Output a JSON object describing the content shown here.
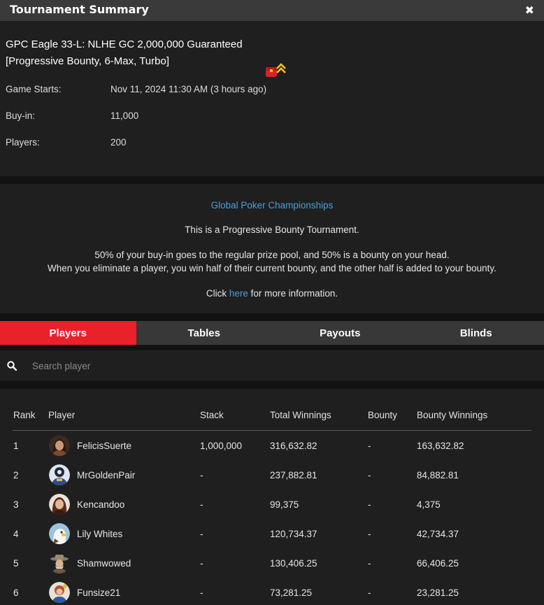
{
  "window": {
    "title": "Tournament Summary",
    "close_glyph": "✖"
  },
  "tournament": {
    "name_line1": "GPC Eagle 33-L: NLHE GC 2,000,000 Guaranteed",
    "name_line2": "[Progressive Bounty, 6-Max, Turbo]",
    "badge_icon": "progressive-bounty-badge-icon",
    "details": [
      {
        "label": "Game Starts:",
        "value": "Nov 11, 2024 11:30 AM (3 hours ago)"
      },
      {
        "label": "Buy-in:",
        "value": "11,000"
      },
      {
        "label": "Players:",
        "value": "200"
      }
    ]
  },
  "description": {
    "series_link": "Global Poker Championships",
    "line1": "This is a Progressive Bounty Tournament.",
    "line2": "50% of your buy-in goes to the regular prize pool, and 50% is a bounty on your head.",
    "line3": "When you eliminate a player, you win half of their current bounty, and the other half is added to your bounty.",
    "click_prefix": "Click ",
    "click_link": "here",
    "click_suffix": " for more information."
  },
  "tabs": [
    {
      "label": "Players",
      "active": true
    },
    {
      "label": "Tables",
      "active": false
    },
    {
      "label": "Payouts",
      "active": false
    },
    {
      "label": "Blinds",
      "active": false
    }
  ],
  "search": {
    "placeholder": "Search player",
    "value": ""
  },
  "table": {
    "headers": {
      "rank": "Rank",
      "player": "Player",
      "stack": "Stack",
      "total": "Total Winnings",
      "bounty": "Bounty",
      "bounty_winnings": "Bounty Winnings"
    },
    "rows": [
      {
        "rank": "1",
        "player": "FelicisSuerte",
        "stack": "1,000,000",
        "total": "316,632.82",
        "bounty": "-",
        "bounty_winnings": "163,632.82"
      },
      {
        "rank": "2",
        "player": "MrGoldenPair",
        "stack": "-",
        "total": "237,882.81",
        "bounty": "-",
        "bounty_winnings": "84,882.81"
      },
      {
        "rank": "3",
        "player": "Kencandoo",
        "stack": "-",
        "total": "99,375",
        "bounty": "-",
        "bounty_winnings": "4,375"
      },
      {
        "rank": "4",
        "player": "Lily Whites",
        "stack": "-",
        "total": "120,734.37",
        "bounty": "-",
        "bounty_winnings": "42,734.37"
      },
      {
        "rank": "5",
        "player": "Shamwowed",
        "stack": "-",
        "total": "130,406.25",
        "bounty": "-",
        "bounty_winnings": "66,406.25"
      },
      {
        "rank": "6",
        "player": "Funsize21",
        "stack": "-",
        "total": "73,281.25",
        "bounty": "-",
        "bounty_winnings": "23,281.25"
      }
    ]
  },
  "colors": {
    "accent": "#e8212b",
    "link": "#4a9fd8",
    "panel": "#1f1f1f",
    "background": "#121212"
  }
}
